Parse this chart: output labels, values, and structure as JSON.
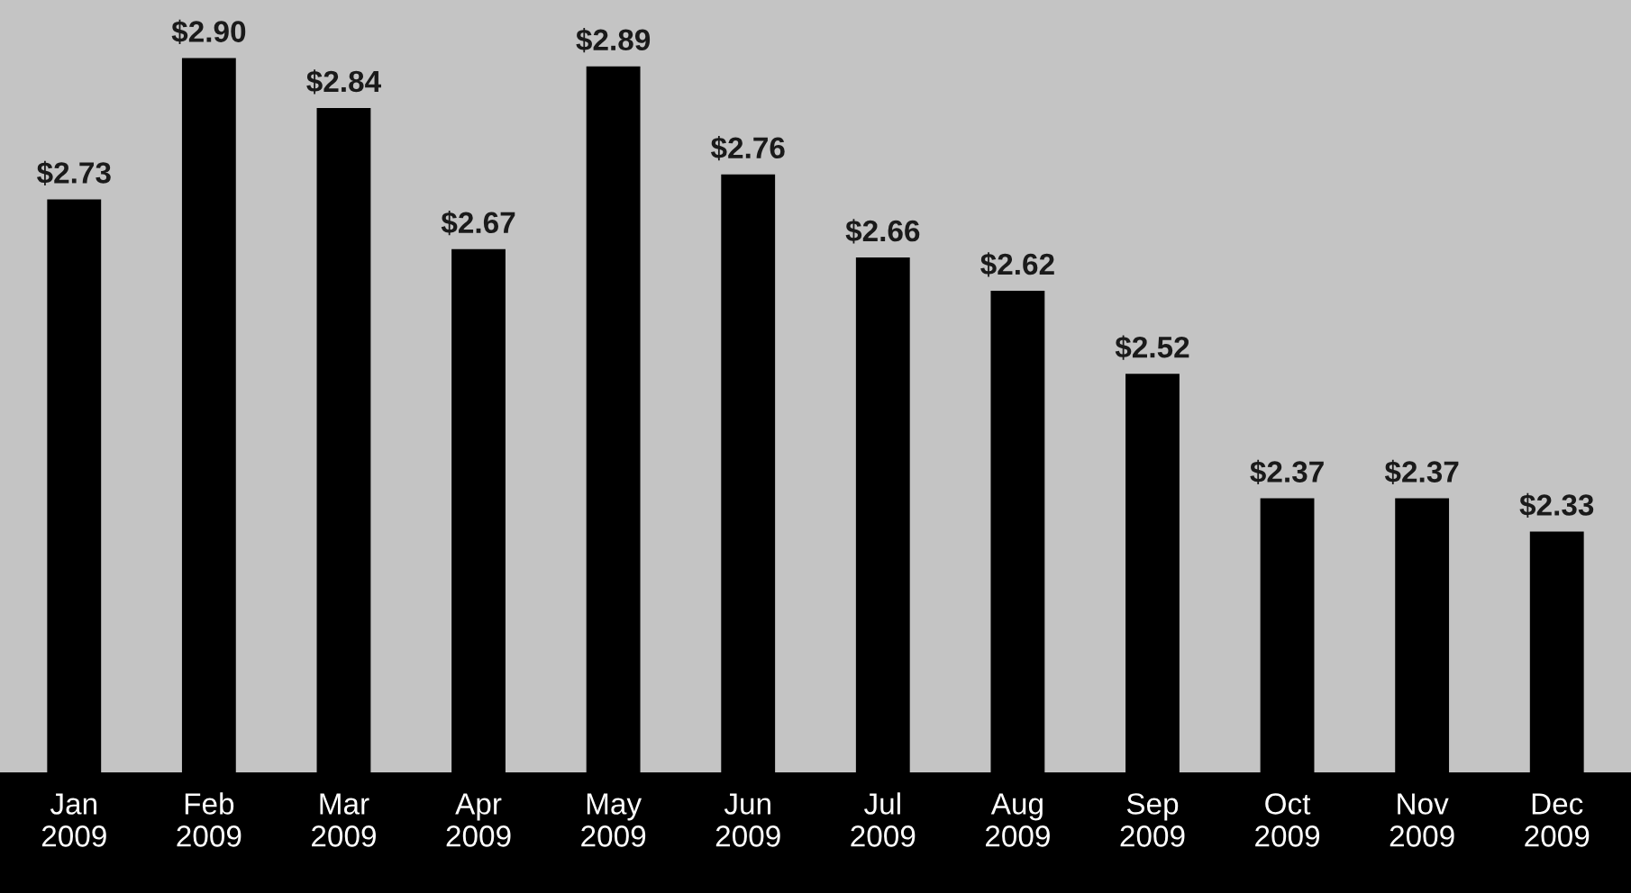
{
  "chart_data": {
    "type": "bar",
    "categories": [
      "Jan\n2009",
      "Feb\n2009",
      "Mar\n2009",
      "Apr\n2009",
      "May\n2009",
      "Jun\n2009",
      "Jul\n2009",
      "Aug\n2009",
      "Sep\n2009",
      "Oct\n2009",
      "Nov\n2009",
      "Dec\n2009"
    ],
    "values": [
      2.73,
      2.9,
      2.84,
      2.67,
      2.89,
      2.76,
      2.66,
      2.62,
      2.52,
      2.37,
      2.37,
      2.33
    ],
    "value_labels": [
      "$2.73",
      "$2.90",
      "$2.84",
      "$2.67",
      "$2.89",
      "$2.76",
      "$2.66",
      "$2.62",
      "$2.52",
      "$2.37",
      "$2.37",
      "$2.33"
    ],
    "color": "#000000",
    "ylim": [
      2.04,
      2.97
    ],
    "tick_labels": "x",
    "grid": false,
    "legend": false
  }
}
